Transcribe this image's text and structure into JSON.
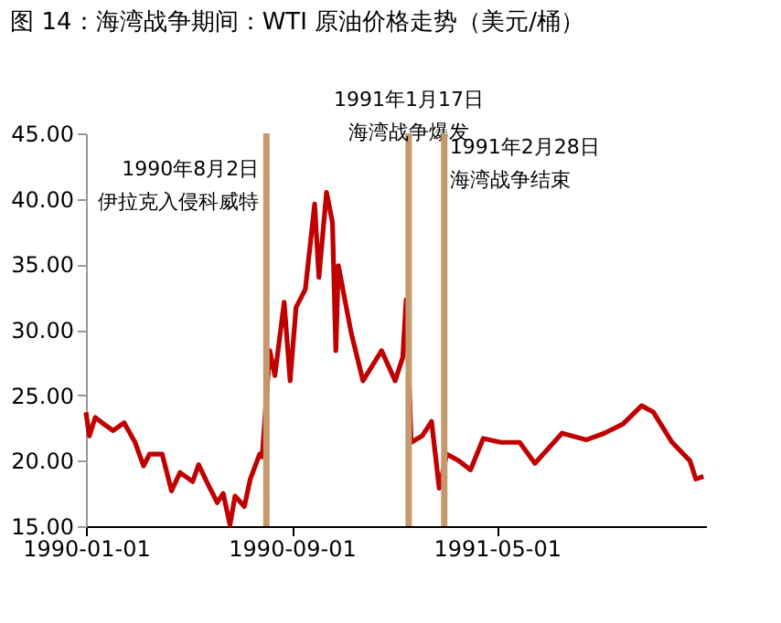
{
  "chart_data": {
    "type": "line",
    "title": "图 14：海湾战争期间：WTI 原油价格走势（美元/桶）",
    "series": [
      {
        "color": "#c00000",
        "x": [
          "1990-01-01",
          "1990-01-05",
          "1990-01-12",
          "1990-01-20",
          "1990-02-02",
          "1990-02-15",
          "1990-02-28",
          "1990-03-10",
          "1990-03-17",
          "1990-04-01",
          "1990-04-12",
          "1990-04-22",
          "1990-05-07",
          "1990-05-14",
          "1990-05-25",
          "1990-06-05",
          "1990-06-12",
          "1990-06-20",
          "1990-06-26",
          "1990-07-07",
          "1990-07-14",
          "1990-07-25",
          "1990-07-28",
          "1990-08-06",
          "1990-08-12",
          "1990-08-23",
          "1990-08-30",
          "1990-09-06",
          "1990-09-17",
          "1990-09-28",
          "1990-10-03",
          "1990-10-12",
          "1990-10-19",
          "1990-10-23",
          "1990-10-26",
          "1990-11-10",
          "1990-11-24",
          "1990-12-16",
          "1991-01-01",
          "1991-01-10",
          "1991-01-14",
          "1991-01-20",
          "1991-02-02",
          "1991-02-13",
          "1991-02-22",
          "1991-03-03",
          "1991-03-17",
          "1991-03-31",
          "1991-04-15",
          "1991-05-06",
          "1991-05-28",
          "1991-06-15",
          "1991-07-17",
          "1991-08-15",
          "1991-09-05",
          "1991-09-27",
          "1991-10-19",
          "1991-11-02",
          "1991-11-24",
          "1991-12-15",
          "1991-12-22",
          "1991-12-31"
        ],
        "values": [
          23.7,
          21.9,
          23.3,
          22.9,
          22.3,
          22.9,
          21.4,
          19.6,
          20.5,
          20.5,
          17.7,
          19.1,
          18.4,
          19.7,
          18.2,
          16.8,
          17.5,
          15.1,
          17.3,
          16.5,
          18.6,
          20.5,
          20.3,
          28.4,
          26.5,
          32.1,
          26.1,
          31.7,
          33.1,
          39.6,
          34.0,
          40.5,
          38.2,
          28.4,
          34.9,
          29.8,
          26.1,
          28.4,
          26.1,
          27.9,
          32.3,
          21.4,
          21.9,
          23.0,
          17.9,
          20.5,
          20.0,
          19.3,
          21.7,
          21.4,
          21.4,
          19.8,
          22.1,
          21.6,
          22.1,
          22.8,
          24.2,
          23.7,
          21.4,
          20.0,
          18.6,
          18.8
        ]
      }
    ],
    "xlim": [
      "1990-01-01",
      "1992-01-03"
    ],
    "xticks": [
      "1990-01-01",
      "1990-09-01",
      "1991-05-01"
    ],
    "ylim": [
      15,
      45
    ],
    "yticks": [
      {
        "value": 15,
        "label": "15.00"
      },
      {
        "value": 20,
        "label": "20.00"
      },
      {
        "value": 25,
        "label": "25.00"
      },
      {
        "value": 30,
        "label": "30.00"
      },
      {
        "value": 35,
        "label": "35.00"
      },
      {
        "value": 40,
        "label": "40.00"
      },
      {
        "value": 45,
        "label": "45.00"
      }
    ],
    "ref_lines": [
      {
        "axis": "x",
        "value": "1990-08-02",
        "label": "1990年8月2日伊拉克入侵科威特",
        "color": "#c49a6c"
      },
      {
        "axis": "x",
        "value": "1991-01-17",
        "label": "1991年1月17日海湾战争爆发",
        "color": "#c49a6c"
      },
      {
        "axis": "x",
        "value": "1991-02-28",
        "label": "1991年2月28日海湾战争结束",
        "color": "#c49a6c"
      }
    ],
    "grid": false
  }
}
